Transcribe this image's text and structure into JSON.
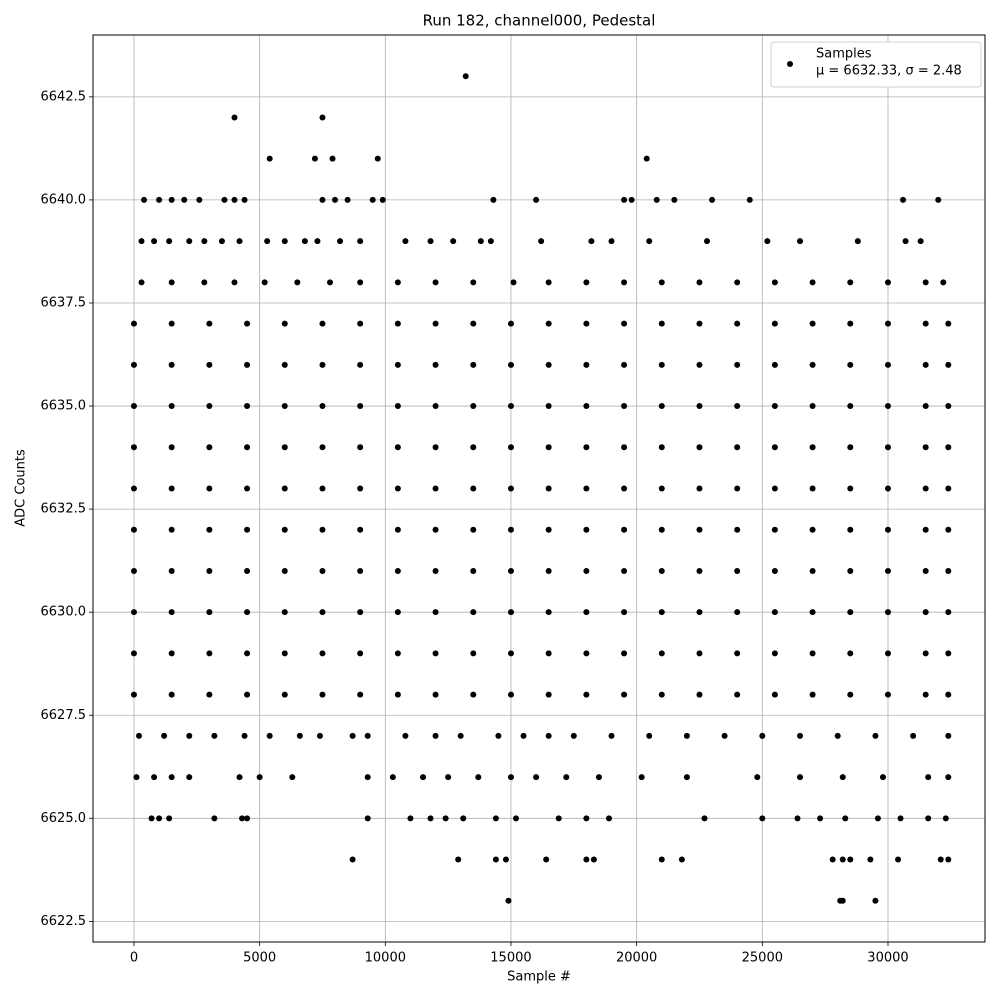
{
  "chart_data": {
    "type": "scatter",
    "title": "Run 182, channel000, Pedestal",
    "x_label": "Sample #",
    "y_label": "ADC Counts",
    "legend": {
      "label": "Samples",
      "note": "μ = 6632.33, σ = 2.48",
      "position": "upper right"
    },
    "color": "#000000",
    "grid": true,
    "xlim": [
      -1630,
      33860
    ],
    "ylim": [
      6622,
      6644
    ],
    "xticks": [
      0,
      5000,
      10000,
      15000,
      20000,
      25000,
      30000
    ],
    "yticks": [
      6622.5,
      {
        "value": 6625,
        "label": "6625.0"
      },
      6627.5,
      {
        "value": 6630,
        "label": "6630.0"
      },
      6632.5,
      {
        "value": 6635,
        "label": "6635.0"
      },
      6637.5,
      {
        "value": 6640,
        "label": "6640.0"
      },
      6642.5
    ],
    "x": [
      13200,
      4000,
      7500,
      5400,
      7200,
      7900,
      9700,
      20400,
      400,
      1000,
      1500,
      2000,
      2600,
      3600,
      4000,
      4400,
      7500,
      8000,
      8500,
      9500,
      9900,
      14300,
      16000,
      19500,
      19800,
      20800,
      21500,
      23000,
      24500,
      30600,
      32000,
      300,
      800,
      1400,
      2200,
      2800,
      3500,
      4200,
      5300,
      6000,
      6800,
      7300,
      8200,
      9000,
      10800,
      11800,
      12700,
      13800,
      14200,
      16200,
      18200,
      19000,
      20500,
      22800,
      25200,
      26500,
      28800,
      30700,
      31300,
      300,
      1500,
      2800,
      4000,
      5200,
      6500,
      7800,
      9000,
      10500,
      12000,
      13500,
      15100,
      16500,
      18000,
      19500,
      21000,
      22500,
      24000,
      25500,
      27000,
      28500,
      30000,
      31500,
      32200,
      0,
      1500,
      3000,
      4500,
      6000,
      7500,
      9000,
      10500,
      12000,
      13500,
      15000,
      16500,
      18000,
      19500,
      21000,
      22500,
      24000,
      25500,
      27000,
      28500,
      30000,
      31500,
      32400,
      0,
      1500,
      3000,
      4500,
      6000,
      7500,
      9000,
      10500,
      12000,
      13500,
      15000,
      16500,
      18000,
      19500,
      21000,
      22500,
      24000,
      25500,
      27000,
      28500,
      30000,
      31500,
      32400,
      0,
      1500,
      3000,
      4500,
      6000,
      7500,
      9000,
      10500,
      12000,
      13500,
      15000,
      16500,
      18000,
      19500,
      21000,
      22500,
      24000,
      25500,
      27000,
      28500,
      30000,
      31500,
      32400,
      0,
      1500,
      3000,
      4500,
      6000,
      7500,
      9000,
      10500,
      12000,
      13500,
      15000,
      16500,
      18000,
      19500,
      21000,
      22500,
      24000,
      25500,
      27000,
      28500,
      30000,
      31500,
      32400,
      0,
      1500,
      3000,
      4500,
      6000,
      7500,
      9000,
      10500,
      12000,
      13500,
      15000,
      16500,
      18000,
      19500,
      21000,
      22500,
      24000,
      25500,
      27000,
      28500,
      30000,
      31500,
      32400,
      0,
      1500,
      3000,
      4500,
      6000,
      7500,
      9000,
      10500,
      12000,
      13500,
      15000,
      16500,
      18000,
      19500,
      21000,
      22500,
      24000,
      25500,
      27000,
      28500,
      30000,
      31500,
      32400,
      0,
      1500,
      3000,
      4500,
      6000,
      7500,
      9000,
      10500,
      12000,
      13500,
      15000,
      16500,
      18000,
      19500,
      21000,
      22500,
      24000,
      25500,
      27000,
      28500,
      30000,
      31500,
      32400,
      0,
      1500,
      3000,
      4500,
      6000,
      7500,
      9000,
      10500,
      12000,
      13500,
      15000,
      16500,
      18000,
      19500,
      21000,
      22500,
      24000,
      25500,
      27000,
      28500,
      30000,
      31500,
      32400,
      0,
      1500,
      3000,
      4500,
      6000,
      7500,
      9000,
      10500,
      12000,
      13500,
      15000,
      16500,
      18000,
      19500,
      21000,
      22500,
      24000,
      25500,
      27000,
      28500,
      30000,
      31500,
      32400,
      0,
      1500,
      3000,
      4500,
      6000,
      7500,
      9000,
      10500,
      12000,
      13500,
      15000,
      16500,
      18000,
      19500,
      21000,
      22500,
      24000,
      25500,
      27000,
      28500,
      30000,
      31500,
      32400,
      200,
      1200,
      2200,
      3200,
      4400,
      5400,
      6600,
      7400,
      8700,
      9300,
      10800,
      12000,
      13000,
      14500,
      15500,
      16500,
      17500,
      19000,
      20500,
      22000,
      23500,
      25000,
      26500,
      28000,
      29500,
      31000,
      32400,
      100,
      800,
      1500,
      2200,
      4200,
      5000,
      6300,
      9300,
      10300,
      11500,
      12500,
      13700,
      15000,
      16000,
      17200,
      18500,
      20200,
      22000,
      24800,
      26500,
      28200,
      29800,
      31600,
      32400,
      700,
      1000,
      1400,
      3200,
      4300,
      4500,
      9300,
      11000,
      11800,
      12400,
      13100,
      14400,
      15200,
      16900,
      18000,
      18900,
      22700,
      25000,
      26400,
      27300,
      28300,
      29600,
      30500,
      31600,
      32300,
      8700,
      12900,
      14400,
      14800,
      16400,
      18000,
      18300,
      21000,
      21800,
      27800,
      28200,
      28500,
      29300,
      30400,
      32100,
      32400,
      14900,
      28100,
      28200,
      29500
    ],
    "values": [
      6643,
      6642,
      6642,
      6641,
      6641,
      6641,
      6641,
      6641,
      6640,
      6640,
      6640,
      6640,
      6640,
      6640,
      6640,
      6640,
      6640,
      6640,
      6640,
      6640,
      6640,
      6640,
      6640,
      6640,
      6640,
      6640,
      6640,
      6640,
      6640,
      6640,
      6640,
      6639,
      6639,
      6639,
      6639,
      6639,
      6639,
      6639,
      6639,
      6639,
      6639,
      6639,
      6639,
      6639,
      6639,
      6639,
      6639,
      6639,
      6639,
      6639,
      6639,
      6639,
      6639,
      6639,
      6639,
      6639,
      6639,
      6639,
      6639,
      6638,
      6638,
      6638,
      6638,
      6638,
      6638,
      6638,
      6638,
      6638,
      6638,
      6638,
      6638,
      6638,
      6638,
      6638,
      6638,
      6638,
      6638,
      6638,
      6638,
      6638,
      6638,
      6638,
      6638,
      6637,
      6637,
      6637,
      6637,
      6637,
      6637,
      6637,
      6637,
      6637,
      6637,
      6637,
      6637,
      6637,
      6637,
      6637,
      6637,
      6637,
      6637,
      6637,
      6637,
      6637,
      6637,
      6637,
      6636,
      6636,
      6636,
      6636,
      6636,
      6636,
      6636,
      6636,
      6636,
      6636,
      6636,
      6636,
      6636,
      6636,
      6636,
      6636,
      6636,
      6636,
      6636,
      6636,
      6636,
      6636,
      6636,
      6635,
      6635,
      6635,
      6635,
      6635,
      6635,
      6635,
      6635,
      6635,
      6635,
      6635,
      6635,
      6635,
      6635,
      6635,
      6635,
      6635,
      6635,
      6635,
      6635,
      6635,
      6635,
      6635,
      6634,
      6634,
      6634,
      6634,
      6634,
      6634,
      6634,
      6634,
      6634,
      6634,
      6634,
      6634,
      6634,
      6634,
      6634,
      6634,
      6634,
      6634,
      6634,
      6634,
      6634,
      6634,
      6634,
      6633,
      6633,
      6633,
      6633,
      6633,
      6633,
      6633,
      6633,
      6633,
      6633,
      6633,
      6633,
      6633,
      6633,
      6633,
      6633,
      6633,
      6633,
      6633,
      6633,
      6633,
      6633,
      6633,
      6632,
      6632,
      6632,
      6632,
      6632,
      6632,
      6632,
      6632,
      6632,
      6632,
      6632,
      6632,
      6632,
      6632,
      6632,
      6632,
      6632,
      6632,
      6632,
      6632,
      6632,
      6632,
      6632,
      6631,
      6631,
      6631,
      6631,
      6631,
      6631,
      6631,
      6631,
      6631,
      6631,
      6631,
      6631,
      6631,
      6631,
      6631,
      6631,
      6631,
      6631,
      6631,
      6631,
      6631,
      6631,
      6631,
      6630,
      6630,
      6630,
      6630,
      6630,
      6630,
      6630,
      6630,
      6630,
      6630,
      6630,
      6630,
      6630,
      6630,
      6630,
      6630,
      6630,
      6630,
      6630,
      6630,
      6630,
      6630,
      6630,
      6629,
      6629,
      6629,
      6629,
      6629,
      6629,
      6629,
      6629,
      6629,
      6629,
      6629,
      6629,
      6629,
      6629,
      6629,
      6629,
      6629,
      6629,
      6629,
      6629,
      6629,
      6629,
      6629,
      6628,
      6628,
      6628,
      6628,
      6628,
      6628,
      6628,
      6628,
      6628,
      6628,
      6628,
      6628,
      6628,
      6628,
      6628,
      6628,
      6628,
      6628,
      6628,
      6628,
      6628,
      6628,
      6628,
      6627,
      6627,
      6627,
      6627,
      6627,
      6627,
      6627,
      6627,
      6627,
      6627,
      6627,
      6627,
      6627,
      6627,
      6627,
      6627,
      6627,
      6627,
      6627,
      6627,
      6627,
      6627,
      6627,
      6627,
      6627,
      6627,
      6627,
      6626,
      6626,
      6626,
      6626,
      6626,
      6626,
      6626,
      6626,
      6626,
      6626,
      6626,
      6626,
      6626,
      6626,
      6626,
      6626,
      6626,
      6626,
      6626,
      6626,
      6626,
      6626,
      6626,
      6626,
      6625,
      6625,
      6625,
      6625,
      6625,
      6625,
      6625,
      6625,
      6625,
      6625,
      6625,
      6625,
      6625,
      6625,
      6625,
      6625,
      6625,
      6625,
      6625,
      6625,
      6625,
      6625,
      6625,
      6625,
      6625,
      6624,
      6624,
      6624,
      6624,
      6624,
      6624,
      6624,
      6624,
      6624,
      6624,
      6624,
      6624,
      6624,
      6624,
      6624,
      6624,
      6623,
      6623,
      6623,
      6623
    ]
  }
}
